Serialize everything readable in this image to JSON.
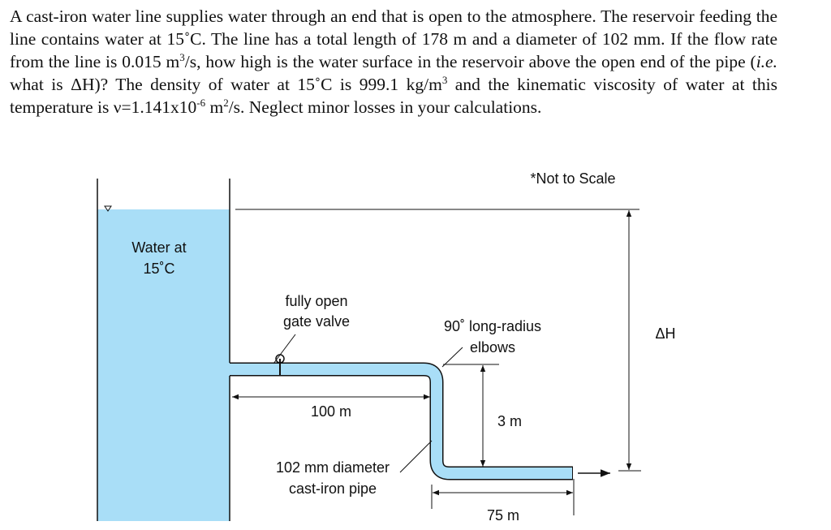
{
  "problem": {
    "segments": [
      "A cast-iron water line supplies water through an end that is open to the atmosphere. The reservoir feeding the line contains water at 15˚C. The line has a total length of 178 m and a diameter of 102 mm. If the flow rate from the line is 0.015 m",
      "3",
      "/s, how high is the water surface in the reservoir above the open end of the pipe (",
      "i.e.",
      " what is ΔH)? The density of water at 15˚C is 999.1 kg/m",
      "3",
      " and the kinematic viscosity of water at this temperature is ν=1.141x10",
      "-6",
      " m",
      "2",
      "/s. Neglect minor losses in your calculations."
    ]
  },
  "diagram": {
    "note": "*Not to Scale",
    "reservoir_label": [
      "Water at",
      "15˚C"
    ],
    "valve_label": [
      "fully open",
      "gate valve"
    ],
    "elbow_label": [
      "90˚ long-radius",
      "elbows"
    ],
    "head_label": "ΔH",
    "pipe_length_1": "100 m",
    "drop": "3 m",
    "pipe_label": [
      "102 mm diameter",
      "cast-iron pipe"
    ],
    "pipe_length_2": "75 m"
  }
}
